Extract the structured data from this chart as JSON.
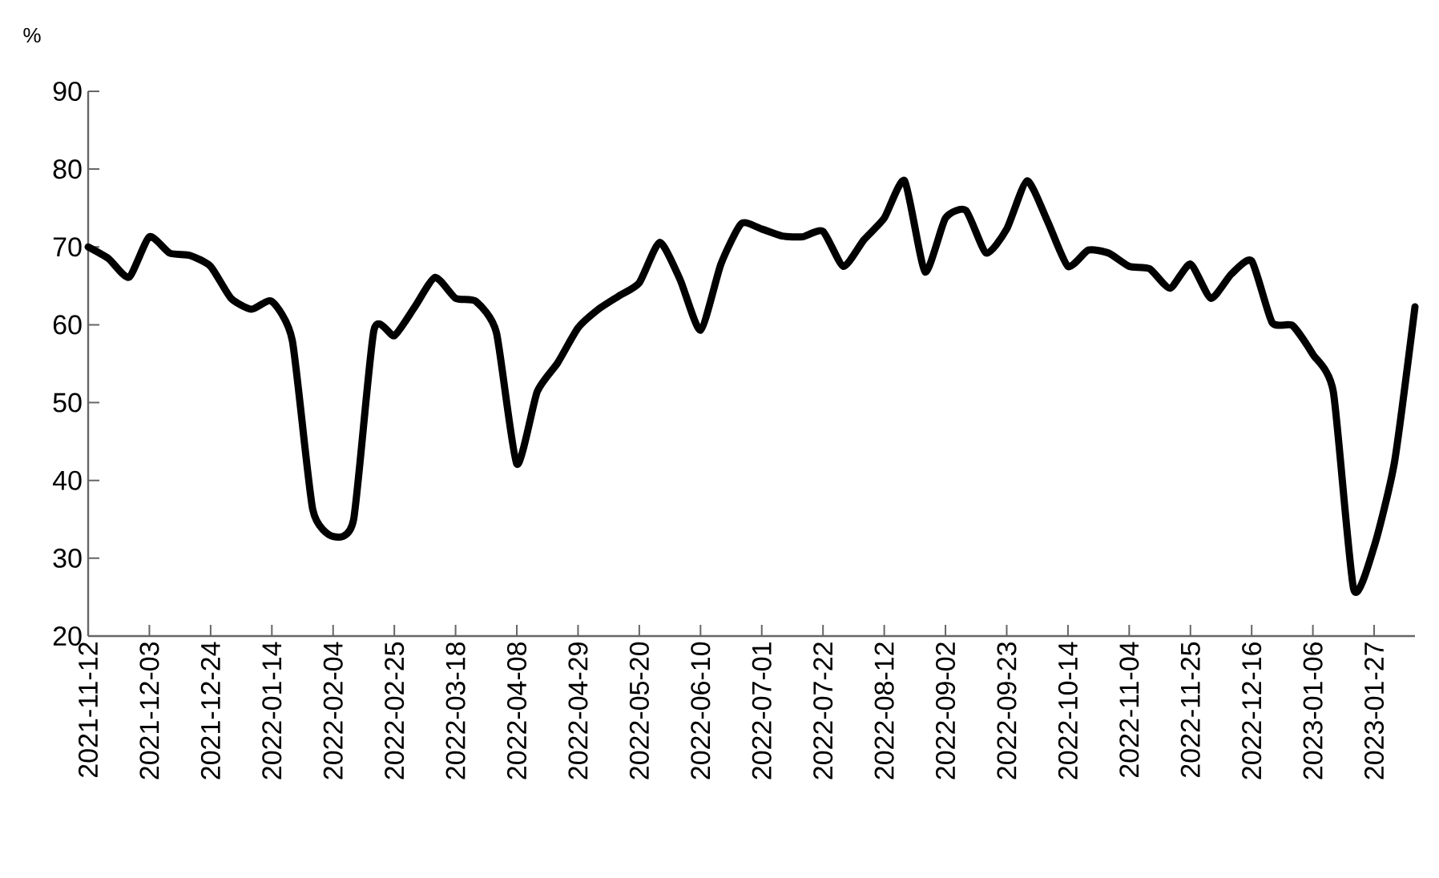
{
  "chart_data": {
    "type": "line",
    "ylabel": "%",
    "categories": [
      "2021-11-12",
      null,
      null,
      "2021-12-03",
      null,
      null,
      "2021-12-24",
      null,
      null,
      "2022-01-14",
      null,
      null,
      "2022-02-04",
      null,
      null,
      "2022-02-25",
      null,
      null,
      "2022-03-18",
      null,
      null,
      "2022-04-08",
      null,
      null,
      "2022-04-29",
      null,
      null,
      "2022-05-20",
      null,
      null,
      "2022-06-10",
      null,
      null,
      "2022-07-01",
      null,
      null,
      "2022-07-22",
      null,
      null,
      "2022-08-12",
      null,
      null,
      "2022-09-02",
      null,
      null,
      "2022-09-23",
      null,
      null,
      "2022-10-14",
      null,
      null,
      "2022-11-04",
      null,
      null,
      "2022-11-25",
      null,
      null,
      "2022-12-16",
      null,
      null,
      "2023-01-06",
      null,
      null,
      "2023-01-27",
      null,
      null
    ],
    "series": [
      {
        "color": "#000000",
        "values": [
          70,
          68.5,
          66.1,
          71.3,
          69.2,
          68.9,
          67.5,
          63.4,
          62,
          63,
          58,
          36.3,
          32.8,
          34.9,
          59.3,
          58.6,
          62.3,
          66.1,
          63.4,
          63,
          59,
          42.1,
          51.4,
          55.1,
          59.6,
          62,
          63.7,
          65.4,
          70.6,
          65.8,
          59.3,
          67.8,
          73,
          72.3,
          71.4,
          71.3,
          72,
          67.5,
          70.9,
          73.7,
          78.5,
          66.8,
          73.7,
          74.7,
          69.2,
          72.3,
          78.5,
          73.3,
          67.5,
          69.6,
          69.2,
          67.5,
          67.2,
          64.7,
          67.8,
          63.4,
          66.5,
          68.2,
          60.3,
          59.9,
          56.2,
          51.4,
          26,
          31.5,
          42.4,
          62.3
        ]
      }
    ],
    "ylim": [
      20,
      90
    ],
    "yticks": [
      20,
      30,
      40,
      50,
      60,
      70,
      80,
      90
    ],
    "line_style": "solid"
  }
}
